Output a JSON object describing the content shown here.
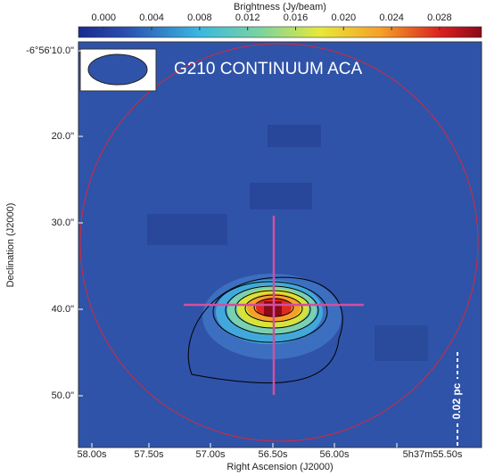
{
  "title": "G210 CONTINUUM ACA",
  "colorbar": {
    "label": "Brightness (Jy/beam)",
    "range": [
      -0.0021,
      0.0315
    ],
    "ticks": [
      {
        "value": 0,
        "label": "0.000"
      },
      {
        "value": 0.004,
        "label": "0.004"
      },
      {
        "value": 0.008,
        "label": "0.008"
      },
      {
        "value": 0.012,
        "label": "0.012"
      },
      {
        "value": 0.016,
        "label": "0.016"
      },
      {
        "value": 0.02,
        "label": "0.020"
      },
      {
        "value": 0.024,
        "label": "0.024"
      },
      {
        "value": 0.028,
        "label": "0.028"
      }
    ]
  },
  "x_axis": {
    "label": "Right Ascension (J2000)",
    "ticks": [
      "58.00s",
      "57.50s",
      "57.00s",
      "56.50s",
      "56.00s",
      "5h37m55.50s"
    ]
  },
  "y_axis": {
    "label": "Declination (J2000)",
    "ticks": [
      "-6°56'10.0\"",
      "20.0\"",
      "30.0\"",
      "40.0\"",
      "50.0\""
    ]
  },
  "scale_bar": "0.02 pc"
}
